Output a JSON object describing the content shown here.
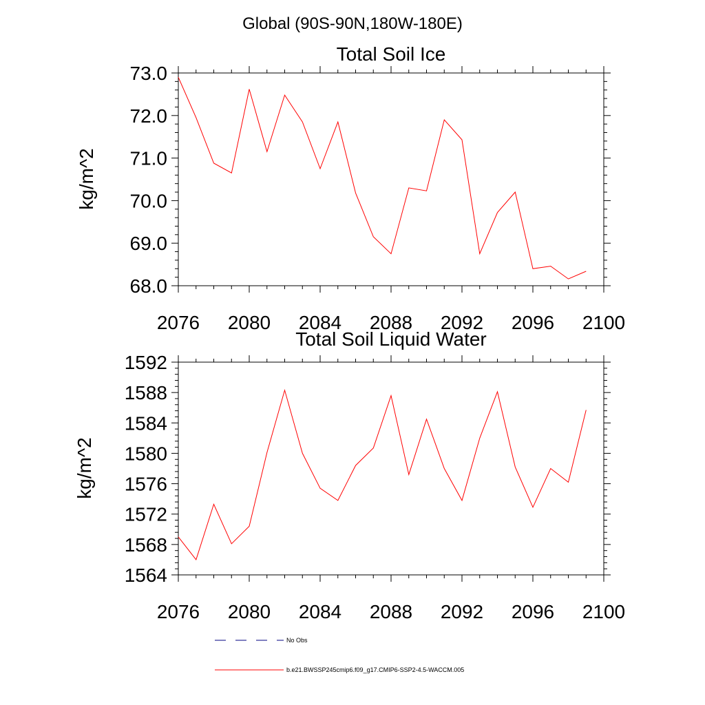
{
  "page_title": "Global (90S-90N,180W-180E)",
  "chart_data": [
    {
      "type": "line",
      "title": "Total Soil Ice",
      "ylabel": "kg/m^2",
      "xlabel": "",
      "xlim": [
        2076,
        2100
      ],
      "ylim": [
        68.0,
        73.0
      ],
      "x_ticks": [
        2076,
        2080,
        2084,
        2088,
        2092,
        2096,
        2100
      ],
      "y_ticks": [
        "68.0",
        "69.0",
        "70.0",
        "71.0",
        "72.0",
        "73.0"
      ],
      "y_tick_values": [
        68,
        69,
        70,
        71,
        72,
        73
      ],
      "grid": false,
      "series": [
        {
          "color": "#ff0000",
          "x": [
            2076,
            2077,
            2078,
            2079,
            2080,
            2081,
            2082,
            2083,
            2084,
            2085,
            2086,
            2087,
            2088,
            2089,
            2090,
            2091,
            2092,
            2093,
            2094,
            2095,
            2096,
            2097,
            2098,
            2099
          ],
          "y": [
            72.9,
            71.95,
            70.88,
            70.65,
            72.62,
            71.15,
            72.48,
            71.85,
            70.75,
            71.85,
            70.18,
            69.15,
            68.75,
            70.3,
            70.23,
            71.9,
            71.43,
            68.75,
            69.72,
            70.2,
            68.4,
            68.46,
            68.16,
            68.34
          ]
        }
      ]
    },
    {
      "type": "line",
      "title": "Total Soil Liquid Water",
      "ylabel": "kg/m^2",
      "xlabel": "",
      "xlim": [
        2076,
        2100
      ],
      "ylim": [
        1564,
        1592
      ],
      "x_ticks": [
        2076,
        2080,
        2084,
        2088,
        2092,
        2096,
        2100
      ],
      "y_ticks": [
        "1564",
        "1568",
        "1572",
        "1576",
        "1580",
        "1584",
        "1588",
        "1592"
      ],
      "y_tick_values": [
        1564,
        1568,
        1572,
        1576,
        1580,
        1584,
        1588,
        1592
      ],
      "grid": false,
      "series": [
        {
          "color": "#ff0000",
          "x": [
            2076,
            2077,
            2078,
            2079,
            2080,
            2081,
            2082,
            2083,
            2084,
            2085,
            2086,
            2087,
            2088,
            2089,
            2090,
            2091,
            2092,
            2093,
            2094,
            2095,
            2096,
            2097,
            2098,
            2099
          ],
          "y": [
            1569.0,
            1566.0,
            1573.3,
            1568.1,
            1570.4,
            1580.1,
            1588.3,
            1580.0,
            1575.4,
            1573.8,
            1578.4,
            1580.7,
            1587.6,
            1577.2,
            1584.5,
            1578.0,
            1573.8,
            1582.0,
            1588.1,
            1578.2,
            1572.9,
            1578.0,
            1576.2,
            1585.7
          ]
        }
      ]
    }
  ],
  "legend": {
    "placement": "bottom",
    "items": [
      {
        "label": "No Obs",
        "style": "dashed",
        "color": "#000080"
      },
      {
        "label": "b.e21.BWSSP245cmip6.f09_g17.CMIP6-SSP2-4.5-WACCM.005",
        "style": "solid",
        "color": "#ff0000"
      }
    ]
  }
}
